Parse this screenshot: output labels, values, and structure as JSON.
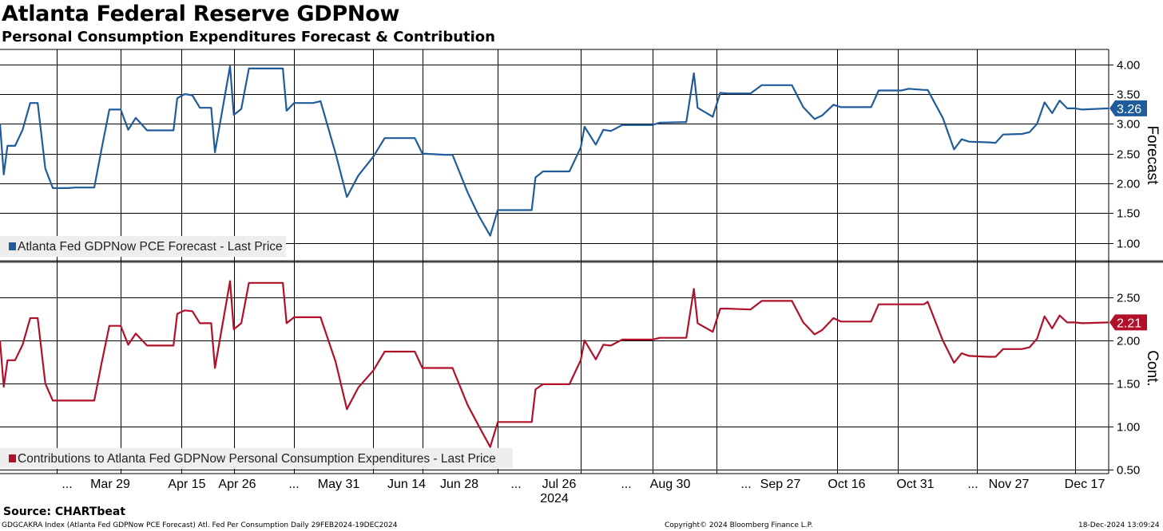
{
  "title": "Atlanta Federal Reserve GDPNow",
  "subtitle": "Personal Consumption Expenditures Forecast & Contribution",
  "source": "Source: CHARTbeat",
  "footer": {
    "index": "GDGCAKRA Index (Atlanta Fed GDPNow PCE Forecast) Atl. Fed Per Consumption  Daily 29FEB2024-19DEC2024",
    "copyright": "Copyright© 2024 Bloomberg Finance L.P.",
    "timestamp": "18-Dec-2024 13:09:24"
  },
  "chart_data": {
    "type": "line",
    "x_axis": {
      "tick_labels": [
        "...",
        "Mar 29",
        "Apr 15",
        "Apr 26",
        "...",
        "May 31",
        "Jun 14",
        "Jun 28",
        "...",
        "Jul 26",
        "...",
        "Aug 30",
        "...",
        "Sep 27",
        "Oct 16",
        "Oct 31",
        "...",
        "Nov 27",
        "Dec 17"
      ],
      "year_label": "2024",
      "start": "2024-02-29",
      "end": "2024-12-19",
      "gridlines": [
        "2024-03-15",
        "2024-04-01",
        "2024-04-17",
        "2024-05-01",
        "2024-05-17",
        "2024-06-07",
        "2024-06-20",
        "2024-07-10",
        "2024-08-01",
        "2024-08-20",
        "2024-09-06",
        "2024-10-08",
        "2024-10-24",
        "2024-11-14",
        "2024-12-10"
      ]
    },
    "panels": [
      {
        "name": "forecast",
        "axis_label": "Forecast",
        "legend": "Atlanta Fed GDPNow PCE Forecast - Last Price",
        "color": "#1f5c99",
        "last_value_label": "3.26",
        "last_value": 3.26,
        "ylim": [
          0.7,
          4.25
        ],
        "yticks": [
          "1.00",
          "1.50",
          "2.00",
          "2.50",
          "3.00",
          "3.50",
          "4.00"
        ],
        "points": [
          [
            "2024-02-29",
            3.0
          ],
          [
            "2024-03-01",
            2.15
          ],
          [
            "2024-03-02",
            2.63
          ],
          [
            "2024-03-04",
            2.63
          ],
          [
            "2024-03-06",
            2.9
          ],
          [
            "2024-03-08",
            3.35
          ],
          [
            "2024-03-10",
            3.35
          ],
          [
            "2024-03-12",
            2.25
          ],
          [
            "2024-03-14",
            1.92
          ],
          [
            "2024-03-18",
            1.92
          ],
          [
            "2024-03-20",
            1.93
          ],
          [
            "2024-03-25",
            1.93
          ],
          [
            "2024-03-27",
            2.6
          ],
          [
            "2024-03-29",
            3.24
          ],
          [
            "2024-04-01",
            3.24
          ],
          [
            "2024-04-03",
            2.9
          ],
          [
            "2024-04-05",
            3.1
          ],
          [
            "2024-04-08",
            2.89
          ],
          [
            "2024-04-15",
            2.89
          ],
          [
            "2024-04-16",
            3.43
          ],
          [
            "2024-04-18",
            3.5
          ],
          [
            "2024-04-20",
            3.48
          ],
          [
            "2024-04-22",
            3.27
          ],
          [
            "2024-04-25",
            3.27
          ],
          [
            "2024-04-26",
            2.52
          ],
          [
            "2024-04-30",
            3.97
          ],
          [
            "2024-05-01",
            3.15
          ],
          [
            "2024-05-03",
            3.25
          ],
          [
            "2024-05-05",
            3.93
          ],
          [
            "2024-05-14",
            3.93
          ],
          [
            "2024-05-15",
            3.22
          ],
          [
            "2024-05-17",
            3.35
          ],
          [
            "2024-05-22",
            3.35
          ],
          [
            "2024-05-24",
            3.38
          ],
          [
            "2024-05-28",
            2.5
          ],
          [
            "2024-05-31",
            1.77
          ],
          [
            "2024-06-03",
            2.13
          ],
          [
            "2024-06-07",
            2.45
          ],
          [
            "2024-06-10",
            2.76
          ],
          [
            "2024-06-18",
            2.76
          ],
          [
            "2024-06-20",
            2.5
          ],
          [
            "2024-06-26",
            2.48
          ],
          [
            "2024-06-28",
            2.48
          ],
          [
            "2024-07-02",
            1.85
          ],
          [
            "2024-07-05",
            1.45
          ],
          [
            "2024-07-08",
            1.12
          ],
          [
            "2024-07-10",
            1.55
          ],
          [
            "2024-07-19",
            1.55
          ],
          [
            "2024-07-20",
            2.1
          ],
          [
            "2024-07-22",
            2.2
          ],
          [
            "2024-07-29",
            2.2
          ],
          [
            "2024-08-01",
            2.6
          ],
          [
            "2024-08-02",
            2.95
          ],
          [
            "2024-08-05",
            2.65
          ],
          [
            "2024-08-07",
            2.9
          ],
          [
            "2024-08-09",
            2.88
          ],
          [
            "2024-08-12",
            2.98
          ],
          [
            "2024-08-20",
            2.98
          ],
          [
            "2024-08-22",
            3.02
          ],
          [
            "2024-08-29",
            3.03
          ],
          [
            "2024-08-31",
            3.85
          ],
          [
            "2024-09-01",
            3.27
          ],
          [
            "2024-09-05",
            3.12
          ],
          [
            "2024-09-07",
            3.52
          ],
          [
            "2024-09-09",
            3.51
          ],
          [
            "2024-09-15",
            3.51
          ],
          [
            "2024-09-18",
            3.65
          ],
          [
            "2024-09-26",
            3.65
          ],
          [
            "2024-09-29",
            3.28
          ],
          [
            "2024-10-02",
            3.08
          ],
          [
            "2024-10-04",
            3.14
          ],
          [
            "2024-10-07",
            3.32
          ],
          [
            "2024-10-09",
            3.28
          ],
          [
            "2024-10-17",
            3.28
          ],
          [
            "2024-10-19",
            3.56
          ],
          [
            "2024-10-25",
            3.56
          ],
          [
            "2024-10-27",
            3.59
          ],
          [
            "2024-10-31",
            3.57
          ],
          [
            "2024-11-01",
            3.57
          ],
          [
            "2024-11-05",
            3.1
          ],
          [
            "2024-11-08",
            2.57
          ],
          [
            "2024-11-10",
            2.74
          ],
          [
            "2024-11-12",
            2.7
          ],
          [
            "2024-11-17",
            2.69
          ],
          [
            "2024-11-19",
            2.68
          ],
          [
            "2024-11-21",
            2.82
          ],
          [
            "2024-11-26",
            2.83
          ],
          [
            "2024-11-28",
            2.86
          ],
          [
            "2024-11-30",
            3.0
          ],
          [
            "2024-12-02",
            3.36
          ],
          [
            "2024-12-04",
            3.18
          ],
          [
            "2024-12-06",
            3.39
          ],
          [
            "2024-12-08",
            3.26
          ],
          [
            "2024-12-10",
            3.26
          ],
          [
            "2024-12-12",
            3.24
          ],
          [
            "2024-12-19",
            3.26
          ]
        ]
      },
      {
        "name": "contribution",
        "axis_label": "Cont.",
        "legend": "Contributions to Atlanta Fed GDPNow Personal Consumption Expenditures - Last Price",
        "color": "#b0102a",
        "last_value_label": "2.21",
        "last_value": 2.21,
        "ylim": [
          0.45,
          2.9
        ],
        "yticks": [
          "0.50",
          "1.00",
          "1.50",
          "2.00",
          "2.50"
        ],
        "points": [
          [
            "2024-02-29",
            2.0
          ],
          [
            "2024-03-01",
            1.46
          ],
          [
            "2024-03-02",
            1.77
          ],
          [
            "2024-03-04",
            1.77
          ],
          [
            "2024-03-06",
            1.95
          ],
          [
            "2024-03-08",
            2.26
          ],
          [
            "2024-03-10",
            2.26
          ],
          [
            "2024-03-12",
            1.5
          ],
          [
            "2024-03-14",
            1.3
          ],
          [
            "2024-03-18",
            1.3
          ],
          [
            "2024-03-20",
            1.3
          ],
          [
            "2024-03-25",
            1.3
          ],
          [
            "2024-03-27",
            1.75
          ],
          [
            "2024-03-29",
            2.17
          ],
          [
            "2024-04-01",
            2.17
          ],
          [
            "2024-04-03",
            1.95
          ],
          [
            "2024-04-05",
            2.08
          ],
          [
            "2024-04-08",
            1.94
          ],
          [
            "2024-04-15",
            1.94
          ],
          [
            "2024-04-16",
            2.31
          ],
          [
            "2024-04-18",
            2.35
          ],
          [
            "2024-04-20",
            2.34
          ],
          [
            "2024-04-22",
            2.2
          ],
          [
            "2024-04-25",
            2.2
          ],
          [
            "2024-04-26",
            1.68
          ],
          [
            "2024-04-30",
            2.69
          ],
          [
            "2024-05-01",
            2.13
          ],
          [
            "2024-05-03",
            2.2
          ],
          [
            "2024-05-05",
            2.67
          ],
          [
            "2024-05-14",
            2.67
          ],
          [
            "2024-05-15",
            2.2
          ],
          [
            "2024-05-17",
            2.27
          ],
          [
            "2024-05-22",
            2.27
          ],
          [
            "2024-05-24",
            2.27
          ],
          [
            "2024-05-28",
            1.75
          ],
          [
            "2024-05-31",
            1.2
          ],
          [
            "2024-06-03",
            1.45
          ],
          [
            "2024-06-07",
            1.65
          ],
          [
            "2024-06-10",
            1.87
          ],
          [
            "2024-06-18",
            1.87
          ],
          [
            "2024-06-20",
            1.68
          ],
          [
            "2024-06-26",
            1.68
          ],
          [
            "2024-06-28",
            1.68
          ],
          [
            "2024-07-02",
            1.25
          ],
          [
            "2024-07-05",
            1.0
          ],
          [
            "2024-07-08",
            0.76
          ],
          [
            "2024-07-10",
            1.05
          ],
          [
            "2024-07-19",
            1.05
          ],
          [
            "2024-07-20",
            1.43
          ],
          [
            "2024-07-22",
            1.49
          ],
          [
            "2024-07-29",
            1.49
          ],
          [
            "2024-08-01",
            1.77
          ],
          [
            "2024-08-02",
            2.0
          ],
          [
            "2024-08-05",
            1.78
          ],
          [
            "2024-08-07",
            1.95
          ],
          [
            "2024-08-09",
            1.94
          ],
          [
            "2024-08-12",
            2.01
          ],
          [
            "2024-08-20",
            2.01
          ],
          [
            "2024-08-22",
            2.03
          ],
          [
            "2024-08-29",
            2.03
          ],
          [
            "2024-08-31",
            2.6
          ],
          [
            "2024-09-01",
            2.2
          ],
          [
            "2024-09-05",
            2.1
          ],
          [
            "2024-09-07",
            2.37
          ],
          [
            "2024-09-09",
            2.37
          ],
          [
            "2024-09-15",
            2.36
          ],
          [
            "2024-09-18",
            2.46
          ],
          [
            "2024-09-26",
            2.46
          ],
          [
            "2024-09-29",
            2.21
          ],
          [
            "2024-10-02",
            2.07
          ],
          [
            "2024-10-04",
            2.12
          ],
          [
            "2024-10-07",
            2.26
          ],
          [
            "2024-10-09",
            2.22
          ],
          [
            "2024-10-17",
            2.22
          ],
          [
            "2024-10-19",
            2.42
          ],
          [
            "2024-10-25",
            2.42
          ],
          [
            "2024-10-27",
            2.42
          ],
          [
            "2024-10-31",
            2.42
          ],
          [
            "2024-11-01",
            2.45
          ],
          [
            "2024-11-05",
            2.0
          ],
          [
            "2024-11-08",
            1.74
          ],
          [
            "2024-11-10",
            1.85
          ],
          [
            "2024-11-12",
            1.82
          ],
          [
            "2024-11-17",
            1.81
          ],
          [
            "2024-11-19",
            1.81
          ],
          [
            "2024-11-21",
            1.9
          ],
          [
            "2024-11-26",
            1.9
          ],
          [
            "2024-11-28",
            1.92
          ],
          [
            "2024-11-30",
            2.02
          ],
          [
            "2024-12-02",
            2.28
          ],
          [
            "2024-12-04",
            2.14
          ],
          [
            "2024-12-06",
            2.29
          ],
          [
            "2024-12-08",
            2.21
          ],
          [
            "2024-12-10",
            2.21
          ],
          [
            "2024-12-12",
            2.2
          ],
          [
            "2024-12-19",
            2.21
          ]
        ]
      }
    ]
  }
}
